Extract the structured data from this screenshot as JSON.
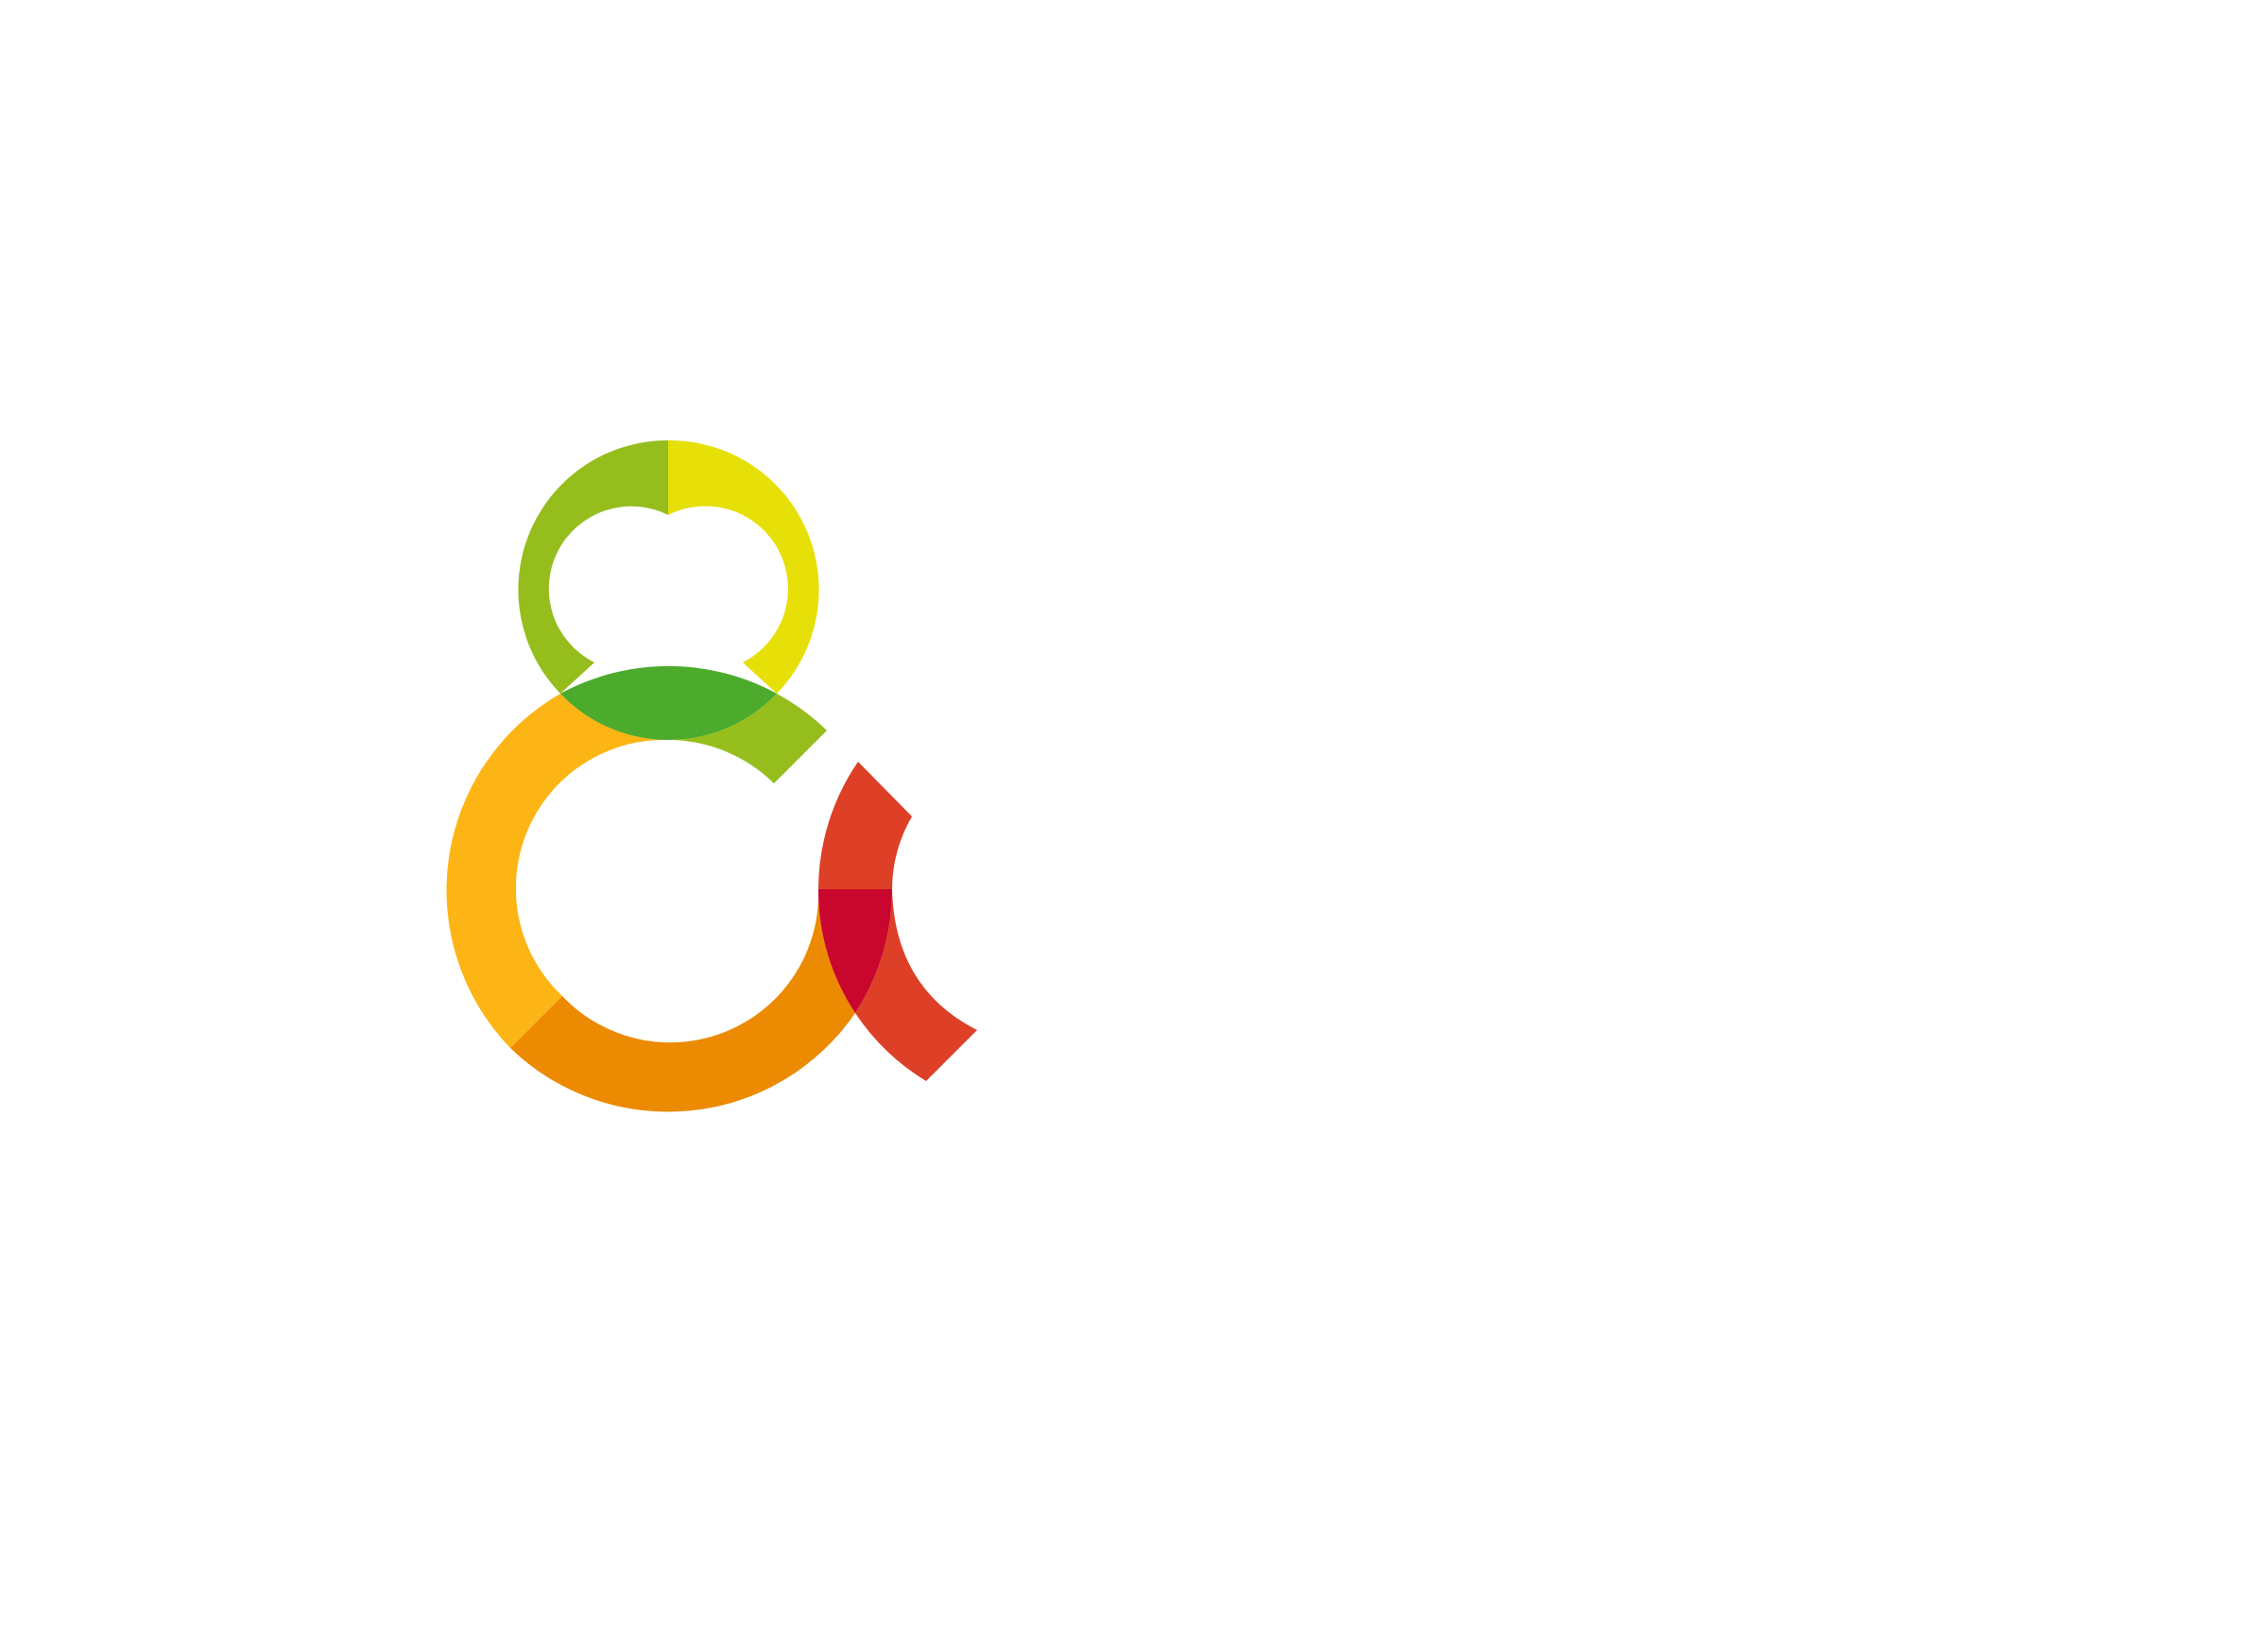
{
  "logo": {
    "name": "ampersand-logo",
    "colors": {
      "top_left": "#95be1d",
      "top_right": "#e6df08",
      "middle_overlap": "#4cab2c",
      "middle_right_arc": "#95be1d",
      "left_arc": "#fdb515",
      "bottom_arc": "#ec8a02",
      "right_upper": "#dd3f27",
      "right_overlap": "#c9062d",
      "right_tail": "#dd3f27"
    }
  }
}
